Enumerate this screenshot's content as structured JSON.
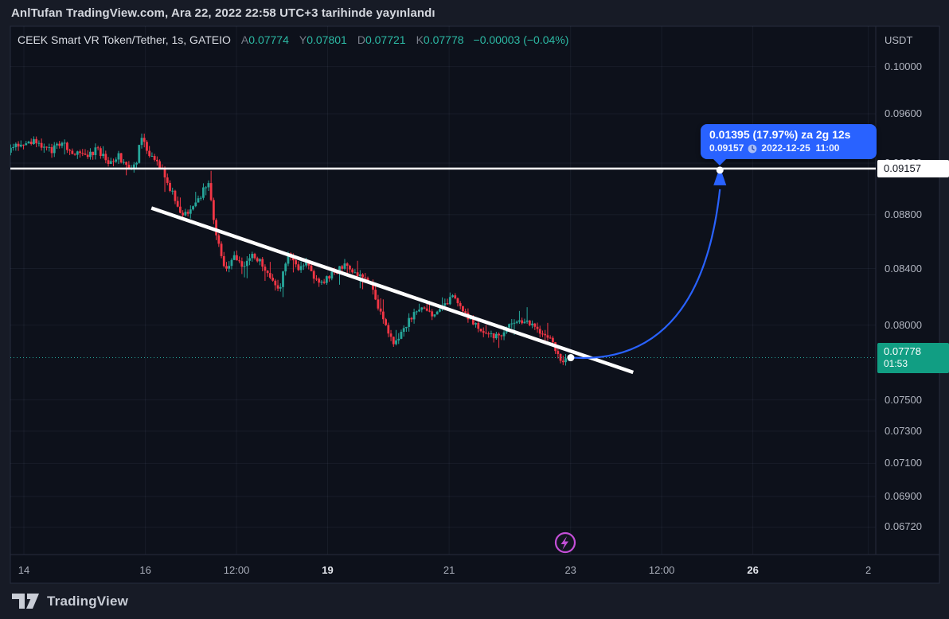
{
  "topbar": {
    "attribution": "AnlTufan TradingView.com, Ara 22, 2022 22:58 UTC+3 tarihinde yayınlandı"
  },
  "legend": {
    "symbol": "CEEK Smart VR Token/Tether, 1s, GATEIO",
    "ohlc": [
      {
        "k": "A",
        "v": "0.07774"
      },
      {
        "k": "Y",
        "v": "0.07801"
      },
      {
        "k": "D",
        "v": "0.07721"
      },
      {
        "k": "K",
        "v": "0.07778"
      }
    ],
    "change": "−0.00003 (−0.04%)"
  },
  "price_scale": {
    "currency": "USDT",
    "ticks": [
      {
        "label": "0.10000",
        "value": 0.1
      },
      {
        "label": "0.09600",
        "value": 0.096
      },
      {
        "label": "0.09200",
        "value": 0.092
      },
      {
        "label": "0.08800",
        "value": 0.088
      },
      {
        "label": "0.08400",
        "value": 0.084
      },
      {
        "label": "0.08000",
        "value": 0.08
      },
      {
        "label": "0.07500",
        "value": 0.075
      },
      {
        "label": "0.07300",
        "value": 0.073
      },
      {
        "label": "0.07100",
        "value": 0.071
      },
      {
        "label": "0.06900",
        "value": 0.069
      },
      {
        "label": "0.06720",
        "value": 0.0672
      }
    ],
    "target_label": "0.09157",
    "countdown_label": {
      "price": "0.07778",
      "time": "01:53"
    }
  },
  "time_scale": {
    "ticks": [
      {
        "label": "14",
        "day": 14,
        "bold": false
      },
      {
        "label": "16",
        "day": 16,
        "bold": false
      },
      {
        "label": "12:00",
        "day": 17.5,
        "bold": false
      },
      {
        "label": "19",
        "day": 19,
        "bold": true
      },
      {
        "label": "21",
        "day": 21,
        "bold": false
      },
      {
        "label": "23",
        "day": 23,
        "bold": false
      },
      {
        "label": "12:00",
        "day": 24.5,
        "bold": false
      },
      {
        "label": "26",
        "day": 26,
        "bold": true
      },
      {
        "label": "2",
        "day": 27.9,
        "bold": false
      }
    ]
  },
  "tooltip": {
    "line1": "0.01395 (17.97%) za 2g 12s",
    "price": "0.09157",
    "datetime": "2022-12-25  11:00"
  },
  "branding": {
    "name": "TradingView"
  },
  "colors": {
    "up_candle": "#26a69a",
    "down_candle": "#f23645",
    "projection_blue": "#2962ff",
    "countdown_green": "#119e83",
    "idea_marker_purple": "#c44fd8",
    "target_line_white": "#ffffff"
  },
  "chart_data": {
    "type": "candlestick",
    "title": "CEEK Smart VR Token/Tether, 1s, GATEIO",
    "exchange": "GATEIO",
    "interval": "1s",
    "quote_currency": "USDT",
    "last_bar": {
      "open": 0.07774,
      "high": 0.07801,
      "low": 0.07721,
      "close": 0.07778,
      "change": -3e-05,
      "change_pct": -0.04
    },
    "current_price": 0.07778,
    "bar_countdown": "01:53",
    "y_axis": {
      "scale": "logarithmic",
      "ticks": [
        0.1,
        0.096,
        0.092,
        0.088,
        0.084,
        0.08,
        0.075,
        0.073,
        0.071,
        0.069,
        0.0672
      ]
    },
    "x_axis": {
      "unit": "December 2022, day of month",
      "tick_labels": [
        "14",
        "16",
        "12:00",
        "19",
        "21",
        "23",
        "12:00",
        "26",
        "2"
      ]
    },
    "horizontal_ray_level": 0.09157,
    "trendline": {
      "from": {
        "day": 16.1,
        "price": 0.0885
      },
      "to": {
        "day": 24.03,
        "price": 0.0768
      }
    },
    "projection": {
      "from": {
        "day": 22.99,
        "price": 0.07778
      },
      "to": {
        "day": 25.458,
        "price": 0.09157,
        "datetime": "2022-12-25 11:00"
      },
      "change": 0.01395,
      "change_pct": 17.97,
      "duration": "2g 12s"
    },
    "price_path_waypoints": [
      [
        13.74,
        0.093
      ],
      [
        13.95,
        0.0935
      ],
      [
        14.2,
        0.0937
      ],
      [
        14.45,
        0.0929
      ],
      [
        14.6,
        0.0937
      ],
      [
        14.8,
        0.093
      ],
      [
        15.0,
        0.0924
      ],
      [
        15.2,
        0.0931
      ],
      [
        15.4,
        0.092
      ],
      [
        15.55,
        0.0926
      ],
      [
        15.7,
        0.0916
      ],
      [
        15.85,
        0.092
      ],
      [
        15.95,
        0.0945
      ],
      [
        16.05,
        0.0928
      ],
      [
        16.25,
        0.0917
      ],
      [
        16.45,
        0.0896
      ],
      [
        16.6,
        0.0879
      ],
      [
        16.8,
        0.0885
      ],
      [
        16.95,
        0.0898
      ],
      [
        17.05,
        0.0903
      ],
      [
        17.15,
        0.0868
      ],
      [
        17.3,
        0.084
      ],
      [
        17.45,
        0.0848
      ],
      [
        17.6,
        0.0841
      ],
      [
        17.75,
        0.085
      ],
      [
        17.9,
        0.0844
      ],
      [
        18.05,
        0.0836
      ],
      [
        18.2,
        0.0824
      ],
      [
        18.35,
        0.0851
      ],
      [
        18.5,
        0.084
      ],
      [
        18.65,
        0.0846
      ],
      [
        18.85,
        0.0827
      ],
      [
        19.0,
        0.0834
      ],
      [
        19.3,
        0.0843
      ],
      [
        19.5,
        0.0836
      ],
      [
        19.7,
        0.0827
      ],
      [
        19.85,
        0.0812
      ],
      [
        20.0,
        0.0795
      ],
      [
        20.1,
        0.0786
      ],
      [
        20.25,
        0.0798
      ],
      [
        20.4,
        0.0806
      ],
      [
        20.6,
        0.0812
      ],
      [
        20.75,
        0.0807
      ],
      [
        20.9,
        0.0815
      ],
      [
        21.05,
        0.0819
      ],
      [
        21.2,
        0.0811
      ],
      [
        21.4,
        0.0801
      ],
      [
        21.6,
        0.0794
      ],
      [
        21.8,
        0.0792
      ],
      [
        22.0,
        0.08
      ],
      [
        22.15,
        0.0805
      ],
      [
        22.3,
        0.0801
      ],
      [
        22.45,
        0.0797
      ],
      [
        22.6,
        0.0793
      ],
      [
        22.75,
        0.0784
      ],
      [
        22.85,
        0.0776
      ],
      [
        22.99,
        0.07778
      ]
    ]
  }
}
